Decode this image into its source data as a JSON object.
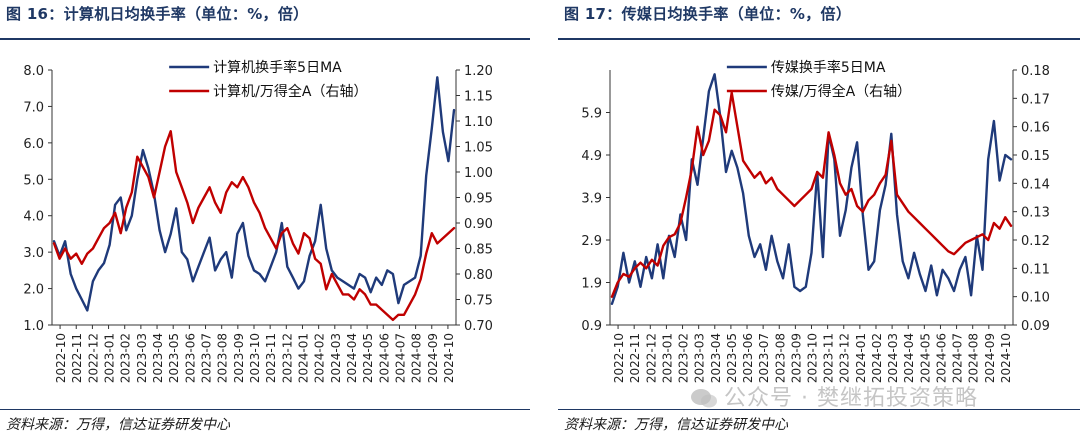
{
  "watermark": "公众号 · 樊继拓投资策略",
  "charts": [
    {
      "title": "图 16：计算机日均换手率（单位：%，倍）",
      "source": "资料来源：万得，信达证券研发中心",
      "chart_data": {
        "type": "line",
        "x_ticks": [
          "2022-10",
          "2022-11",
          "2022-12",
          "2023-01",
          "2023-02",
          "2023-03",
          "2023-04",
          "2023-05",
          "2023-06",
          "2023-07",
          "2023-08",
          "2023-09",
          "2023-10",
          "2023-11",
          "2023-12",
          "2024-01",
          "2024-02",
          "2024-03",
          "2024-04",
          "2024-05",
          "2024-06",
          "2024-07",
          "2024-08",
          "2024-09",
          "2024-10"
        ],
        "y_left": {
          "min": 1.0,
          "max": 8.0,
          "ticks": [
            "1.0",
            "2.0",
            "3.0",
            "4.0",
            "5.0",
            "6.0",
            "7.0",
            "8.0"
          ]
        },
        "y_right": {
          "min": 0.7,
          "max": 1.2,
          "ticks": [
            "0.70",
            "0.75",
            "0.80",
            "0.85",
            "0.90",
            "0.95",
            "1.00",
            "1.05",
            "1.10",
            "1.15",
            "1.20"
          ]
        },
        "legend": "top-center",
        "series": [
          {
            "name": "计算机换手率5日MA",
            "axis": "left",
            "color": "#1f3a7a",
            "values": [
              3.3,
              2.9,
              3.3,
              2.4,
              2.0,
              1.7,
              1.4,
              2.2,
              2.5,
              2.7,
              3.2,
              4.3,
              4.5,
              3.6,
              4.0,
              5.0,
              5.8,
              5.3,
              4.6,
              3.6,
              3.0,
              3.5,
              4.2,
              3.0,
              2.8,
              2.2,
              2.6,
              3.0,
              3.4,
              2.5,
              2.8,
              3.0,
              2.3,
              3.5,
              3.8,
              2.9,
              2.5,
              2.4,
              2.2,
              2.6,
              3.0,
              3.8,
              2.6,
              2.3,
              2.0,
              2.2,
              2.9,
              3.3,
              4.3,
              3.1,
              2.5,
              2.3,
              2.2,
              2.1,
              2.0,
              2.4,
              2.3,
              1.9,
              2.3,
              2.1,
              2.5,
              2.4,
              1.6,
              2.1,
              2.2,
              2.3,
              2.9,
              5.1,
              6.4,
              7.8,
              6.3,
              5.5,
              6.9
            ]
          },
          {
            "name": "计算机/万得全A（右轴）",
            "axis": "right",
            "color": "#c00000",
            "values": [
              0.86,
              0.83,
              0.85,
              0.83,
              0.84,
              0.82,
              0.84,
              0.85,
              0.87,
              0.89,
              0.9,
              0.92,
              0.88,
              0.93,
              0.96,
              1.03,
              1.01,
              0.99,
              0.95,
              1.0,
              1.05,
              1.08,
              1.0,
              0.97,
              0.94,
              0.9,
              0.93,
              0.95,
              0.97,
              0.94,
              0.92,
              0.96,
              0.98,
              0.97,
              0.99,
              0.97,
              0.94,
              0.92,
              0.89,
              0.87,
              0.85,
              0.88,
              0.89,
              0.86,
              0.84,
              0.88,
              0.87,
              0.83,
              0.82,
              0.77,
              0.8,
              0.78,
              0.76,
              0.76,
              0.75,
              0.77,
              0.76,
              0.74,
              0.74,
              0.73,
              0.72,
              0.71,
              0.72,
              0.72,
              0.74,
              0.76,
              0.79,
              0.84,
              0.88,
              0.86,
              0.87,
              0.88,
              0.89
            ]
          }
        ]
      }
    },
    {
      "title": "图 17：传媒日均换手率（单位：%，倍）",
      "source": "资料来源：万得，信达证券研发中心",
      "chart_data": {
        "type": "line",
        "x_ticks": [
          "2022-10",
          "2022-11",
          "2022-12",
          "2023-01",
          "2023-02",
          "2023-03",
          "2023-04",
          "2023-05",
          "2023-06",
          "2023-07",
          "2023-08",
          "2023-09",
          "2023-10",
          "2023-11",
          "2023-12",
          "2024-01",
          "2024-02",
          "2024-03",
          "2024-04",
          "2024-05",
          "2024-06",
          "2024-07",
          "2024-08",
          "2024-09",
          "2024-10"
        ],
        "y_left": {
          "min": 0.9,
          "max": 6.9,
          "ticks": [
            "0.9",
            "1.9",
            "2.9",
            "3.9",
            "4.9",
            "5.9"
          ]
        },
        "y_right": {
          "min": 0.09,
          "max": 0.18,
          "ticks": [
            "0.09",
            "0.10",
            "0.11",
            "0.12",
            "0.13",
            "0.14",
            "0.15",
            "0.16",
            "0.17",
            "0.18"
          ]
        },
        "legend": "top-center",
        "series": [
          {
            "name": "传媒换手率5日MA",
            "axis": "left",
            "color": "#1f3a7a",
            "values": [
              1.4,
              1.8,
              2.6,
              1.9,
              2.4,
              1.8,
              2.5,
              2.0,
              2.8,
              2.0,
              3.0,
              2.5,
              3.5,
              2.9,
              4.8,
              4.2,
              5.3,
              6.4,
              6.8,
              5.8,
              4.5,
              5.0,
              4.6,
              4.0,
              3.0,
              2.5,
              2.8,
              2.2,
              3.0,
              2.4,
              2.0,
              2.8,
              1.8,
              1.7,
              1.8,
              2.6,
              4.5,
              2.5,
              5.4,
              4.8,
              3.0,
              3.6,
              4.6,
              5.2,
              3.5,
              2.2,
              2.4,
              3.6,
              4.2,
              5.4,
              3.5,
              2.4,
              2.0,
              2.6,
              2.1,
              1.7,
              2.3,
              1.6,
              2.2,
              2.0,
              1.7,
              2.2,
              2.5,
              1.6,
              3.0,
              2.2,
              4.8,
              5.7,
              4.3,
              4.9,
              4.8
            ]
          },
          {
            "name": "传媒/万得全A（右轴）",
            "axis": "right",
            "color": "#c00000",
            "values": [
              0.1,
              0.105,
              0.108,
              0.107,
              0.11,
              0.112,
              0.11,
              0.113,
              0.111,
              0.118,
              0.121,
              0.122,
              0.126,
              0.135,
              0.145,
              0.16,
              0.15,
              0.155,
              0.166,
              0.164,
              0.158,
              0.172,
              0.16,
              0.148,
              0.145,
              0.142,
              0.144,
              0.14,
              0.142,
              0.138,
              0.136,
              0.134,
              0.132,
              0.134,
              0.136,
              0.138,
              0.144,
              0.142,
              0.158,
              0.15,
              0.14,
              0.136,
              0.138,
              0.132,
              0.13,
              0.134,
              0.136,
              0.14,
              0.143,
              0.155,
              0.136,
              0.133,
              0.13,
              0.128,
              0.126,
              0.124,
              0.122,
              0.12,
              0.118,
              0.116,
              0.115,
              0.117,
              0.119,
              0.12,
              0.121,
              0.122,
              0.12,
              0.126,
              0.124,
              0.128,
              0.125
            ]
          }
        ]
      }
    }
  ]
}
